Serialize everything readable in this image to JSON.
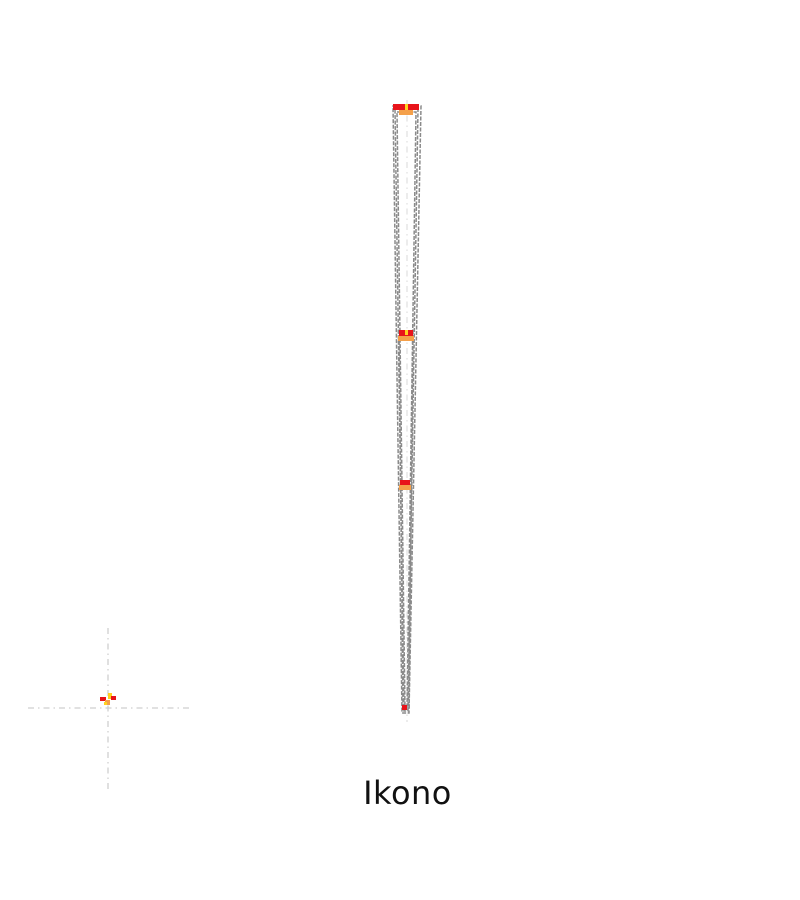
{
  "caption": "Ikono",
  "colors": {
    "outline": "#8a8a8a",
    "guide": "#cfcfcf",
    "marker_primary": "#e8141a",
    "marker_secondary": "#f4a04a",
    "marker_tertiary": "#ffd21f"
  }
}
